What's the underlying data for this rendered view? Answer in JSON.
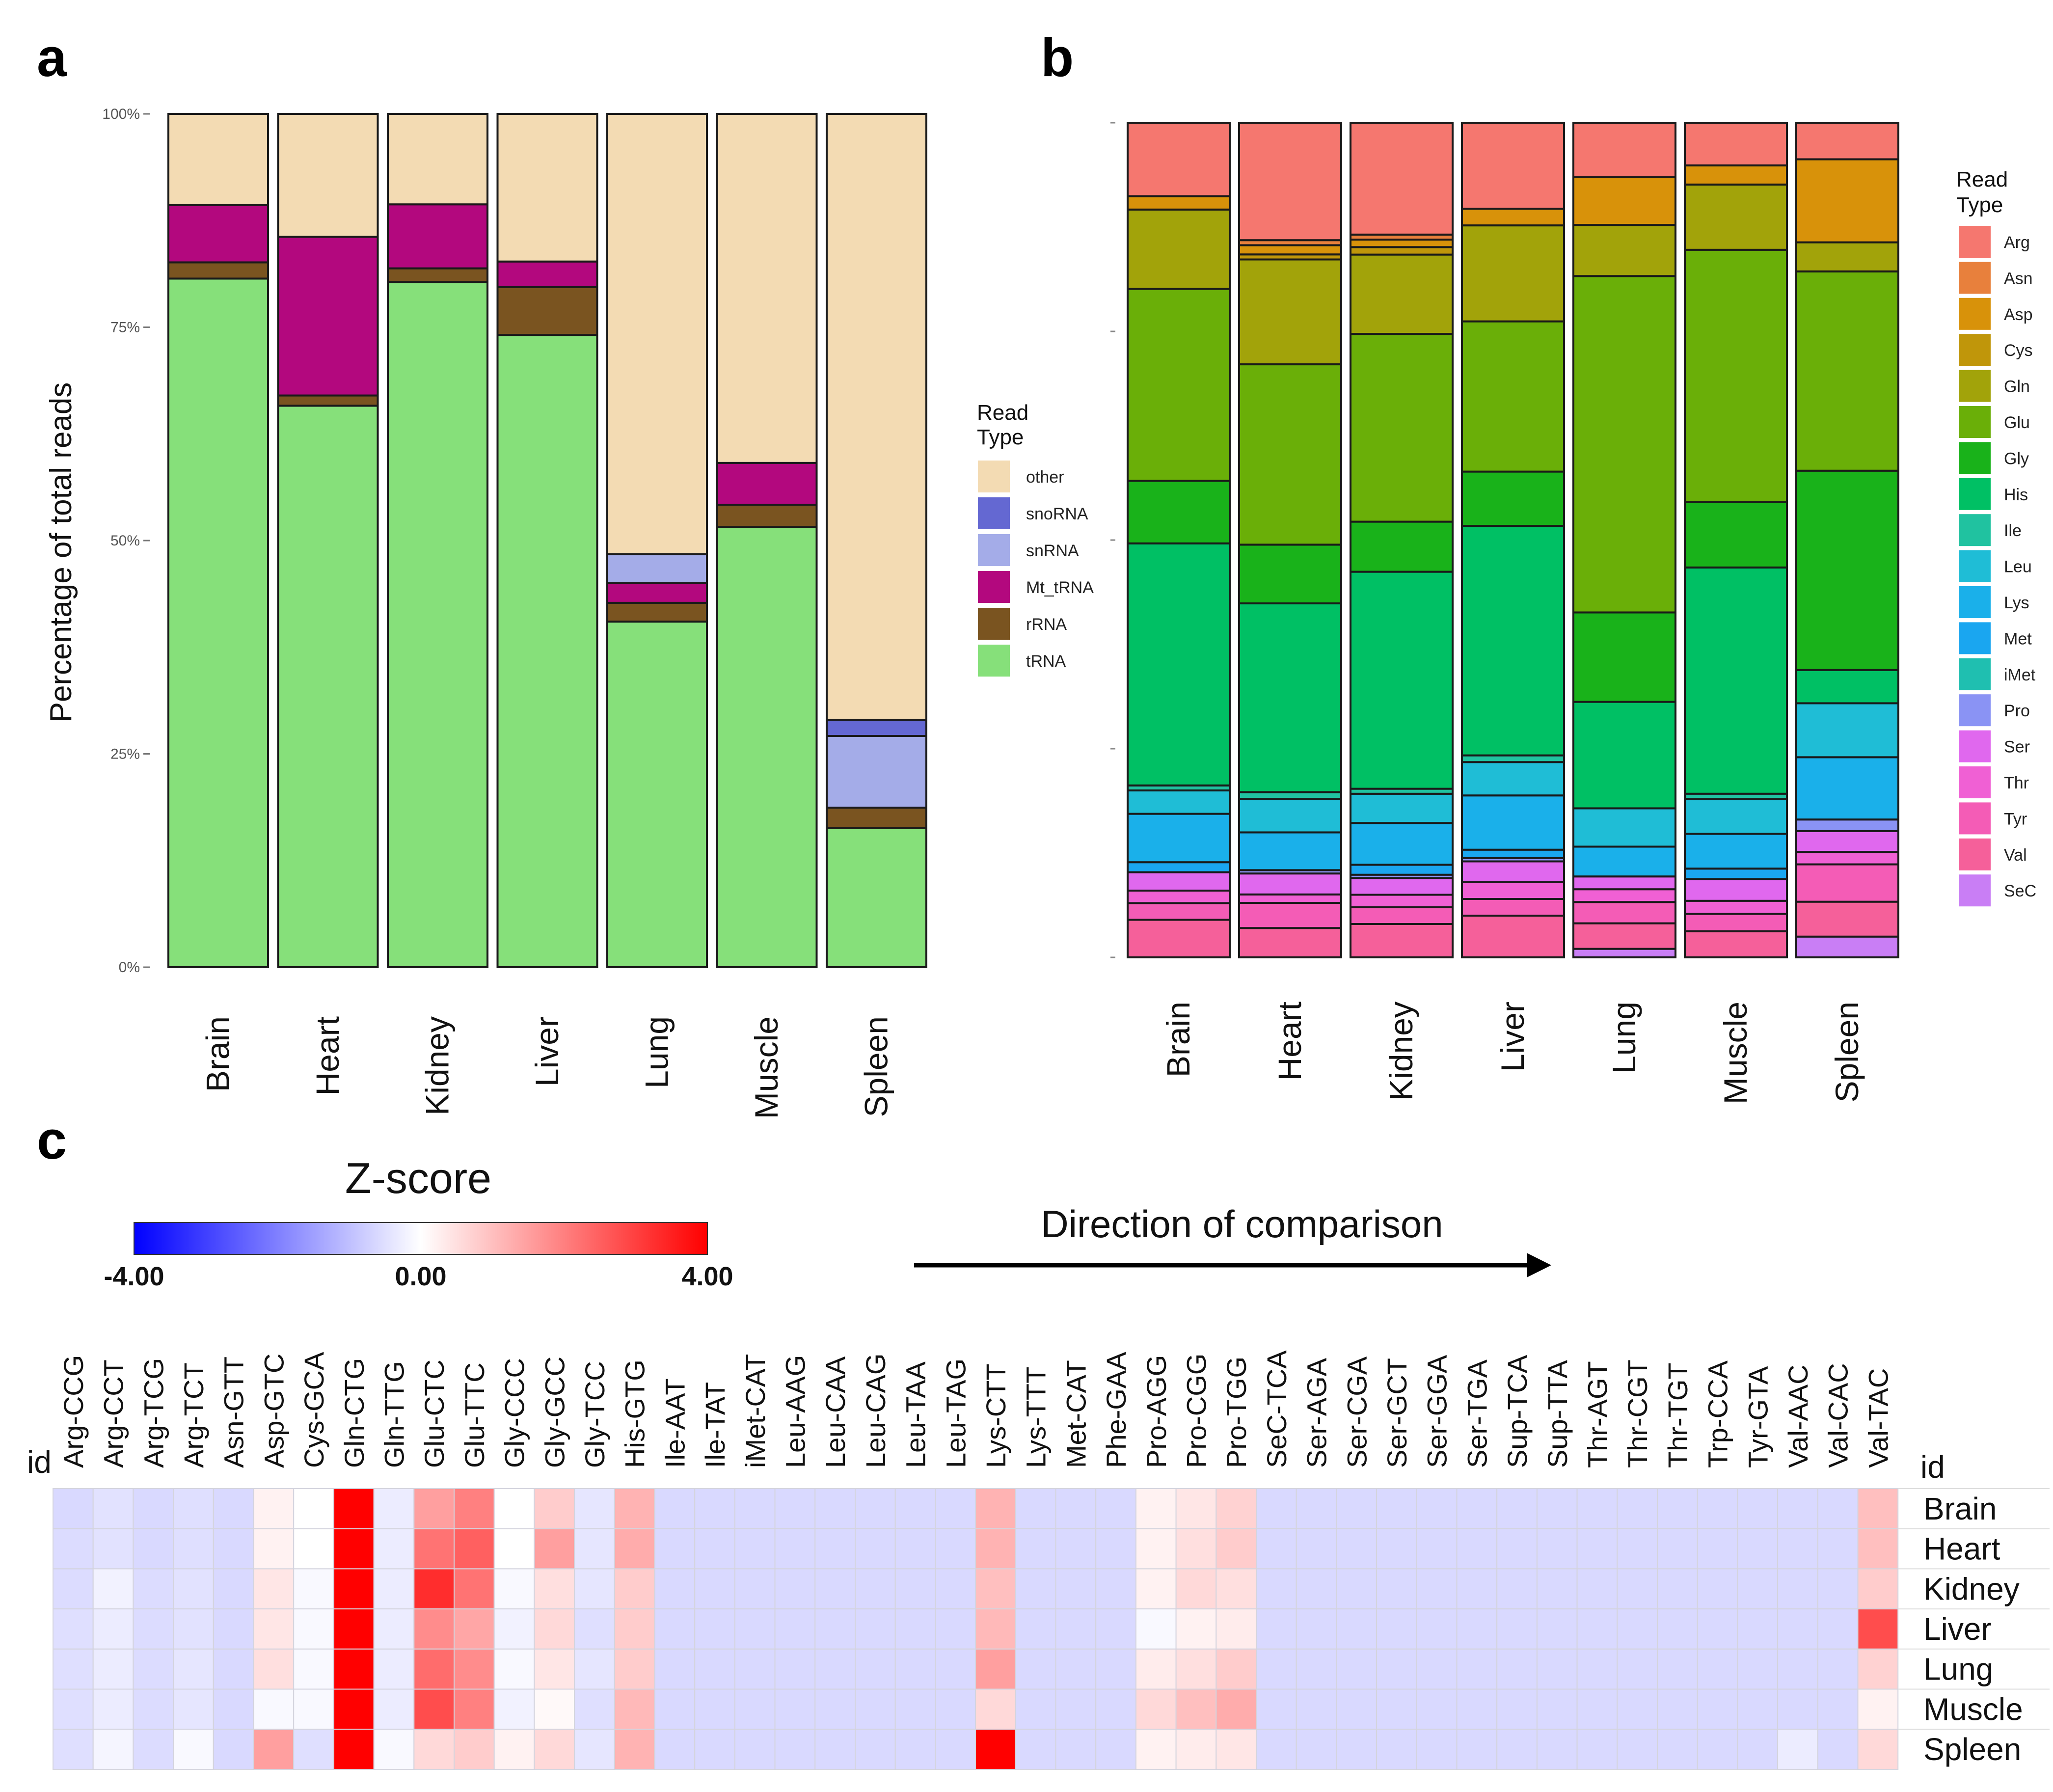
{
  "panel_labels": [
    "a",
    "b",
    "c"
  ],
  "chart_data": [
    {
      "type": "bar",
      "subtype": "stacked-100",
      "panel": "a",
      "categories": [
        "Brain",
        "Heart",
        "Kidney",
        "Liver",
        "Lung",
        "Muscle",
        "Spleen"
      ],
      "ylabel": "Percentage of total reads",
      "ylim": [
        0,
        100
      ],
      "yticks": [
        "0%",
        "25%",
        "50%",
        "75%",
        "100%"
      ],
      "legend": {
        "title": "Read Type",
        "position": "right"
      },
      "series": [
        {
          "name": "tRNA",
          "color": "#86e07a",
          "values": [
            80.7,
            65.8,
            80.3,
            74.1,
            40.5,
            51.6,
            16.3
          ]
        },
        {
          "name": "rRNA",
          "color": "#7a5420",
          "values": [
            1.9,
            1.2,
            1.6,
            5.6,
            2.2,
            2.6,
            2.4
          ]
        },
        {
          "name": "Mt_tRNA",
          "color": "#b3087e",
          "values": [
            6.7,
            18.6,
            7.5,
            3.0,
            2.3,
            4.9,
            0
          ]
        },
        {
          "name": "snRNA",
          "color": "#a4ace8",
          "values": [
            0,
            0,
            0,
            0,
            3.4,
            0,
            8.4
          ]
        },
        {
          "name": "snoRNA",
          "color": "#6468d2",
          "values": [
            0,
            0,
            0,
            0,
            0,
            0,
            1.9
          ]
        },
        {
          "name": "other",
          "color": "#f3dbb3",
          "values": [
            10.7,
            14.4,
            10.6,
            17.3,
            51.6,
            40.9,
            71.0
          ]
        }
      ]
    },
    {
      "type": "bar",
      "subtype": "stacked-100",
      "panel": "b",
      "categories": [
        "Brain",
        "Heart",
        "Kidney",
        "Liver",
        "Lung",
        "Muscle",
        "Spleen"
      ],
      "legend": {
        "title": "Read Type",
        "position": "right"
      },
      "series": [
        {
          "name": "SeC",
          "color": "#c97ef5",
          "values": [
            0,
            0,
            0,
            0,
            1,
            0,
            2.5
          ]
        },
        {
          "name": "Val",
          "color": "#f5609a",
          "values": [
            4.5,
            3.5,
            4,
            5,
            3,
            3,
            4.2
          ]
        },
        {
          "name": "Tyr",
          "color": "#f45cb6",
          "values": [
            2,
            3,
            2,
            2,
            2.5,
            2,
            4.5
          ]
        },
        {
          "name": "Thr",
          "color": "#f060d4",
          "values": [
            1.5,
            1,
            1.5,
            2,
            1.5,
            1.5,
            1.5
          ]
        },
        {
          "name": "Ser",
          "color": "#e068ee",
          "values": [
            2.2,
            2.5,
            2,
            2.5,
            1.5,
            2.5,
            2.5
          ]
        },
        {
          "name": "Pro",
          "color": "#8a93f4",
          "values": [
            0,
            0.4,
            0.4,
            0.4,
            0,
            0,
            1.4
          ]
        },
        {
          "name": "iMet",
          "color": "#1fbfb0",
          "values": [
            0,
            0,
            0,
            0,
            0,
            0,
            0
          ]
        },
        {
          "name": "Met",
          "color": "#1aa6f0",
          "values": [
            1.2,
            0,
            1.2,
            1,
            0,
            1.2,
            0
          ]
        },
        {
          "name": "Lys",
          "color": "#1ab0ea",
          "values": [
            5.8,
            4.5,
            5,
            6.5,
            3.5,
            4,
            7.5
          ]
        },
        {
          "name": "Leu",
          "color": "#1fbdd6",
          "values": [
            2.8,
            4,
            3.5,
            4,
            4.5,
            4,
            6.5
          ]
        },
        {
          "name": "Ile",
          "color": "#20c2a0",
          "values": [
            0.6,
            0.8,
            0.6,
            0.8,
            0,
            0.6,
            0
          ]
        },
        {
          "name": "His",
          "color": "#00c064",
          "values": [
            29,
            22.5,
            26,
            27.5,
            12.5,
            26,
            4
          ]
        },
        {
          "name": "Gly",
          "color": "#19b21a",
          "values": [
            7.5,
            7,
            6,
            6.5,
            10.5,
            7.5,
            24
          ]
        },
        {
          "name": "Glu",
          "color": "#6aaf08",
          "values": [
            23,
            21.5,
            22.5,
            18,
            39.5,
            29,
            24
          ]
        },
        {
          "name": "Gln",
          "color": "#a2a30a",
          "values": [
            9.5,
            12.5,
            9.5,
            11.5,
            6,
            7.5,
            3.5
          ]
        },
        {
          "name": "Cys",
          "color": "#c0960a",
          "values": [
            0,
            0.6,
            0.9,
            0,
            0,
            0,
            0
          ]
        },
        {
          "name": "Asp",
          "color": "#d8920a",
          "values": [
            1.6,
            1.1,
            0.9,
            2,
            5.6,
            2.2,
            10
          ]
        },
        {
          "name": "Asn",
          "color": "#e8803c",
          "values": [
            0,
            0.6,
            0.6,
            0,
            0,
            0,
            0
          ]
        },
        {
          "name": "Arg",
          "color": "#f5776f",
          "values": [
            8.8,
            14,
            13.4,
            10.3,
            6.4,
            4.9,
            4.4
          ]
        }
      ]
    },
    {
      "type": "heatmap",
      "panel": "c",
      "title": "Z-score",
      "colorbar": {
        "min": -4,
        "max": 4,
        "tick_labels": [
          "-4.00",
          "0.00",
          "4.00"
        ]
      },
      "annotation": "Direction of comparison",
      "id_label": "id",
      "columns": [
        "Arg-CCG",
        "Arg-CCT",
        "Arg-TCG",
        "Arg-TCT",
        "Asn-GTT",
        "Asp-GTC",
        "Cys-GCA",
        "Gln-CTG",
        "Gln-TTG",
        "Glu-CTC",
        "Glu-TTC",
        "Gly-CCC",
        "Gly-GCC",
        "Gly-TCC",
        "His-GTG",
        "Ile-AAT",
        "Ile-TAT",
        "iMet-CAT",
        "Leu-AAG",
        "Leu-CAA",
        "Leu-CAG",
        "Leu-TAA",
        "Leu-TAG",
        "Lys-CTT",
        "Lys-TTT",
        "Met-CAT",
        "Phe-GAA",
        "Pro-AGG",
        "Pro-CGG",
        "Pro-TGG",
        "SeC-TCA",
        "Ser-AGA",
        "Ser-CGA",
        "Ser-GCT",
        "Ser-GGA",
        "Ser-TGA",
        "Sup-TCA",
        "Sup-TTA",
        "Thr-AGT",
        "Thr-CGT",
        "Thr-TGT",
        "Trp-CCA",
        "Tyr-GTA",
        "Val-AAC",
        "Val-CAC",
        "Val-TAC"
      ],
      "rows": [
        "Brain",
        "Heart",
        "Kidney",
        "Liver",
        "Lung",
        "Muscle",
        "Spleen"
      ],
      "values": [
        [
          -0.6,
          -0.45,
          -0.6,
          -0.5,
          -0.6,
          0.2,
          0,
          4,
          -0.3,
          1.5,
          2.0,
          0,
          0.8,
          -0.4,
          1.2,
          -0.6,
          -0.6,
          -0.6,
          -0.6,
          -0.6,
          -0.6,
          -0.6,
          -0.6,
          1.2,
          -0.6,
          -0.6,
          -0.6,
          0.2,
          0.4,
          0.7,
          -0.6,
          -0.6,
          -0.6,
          -0.6,
          -0.6,
          -0.6,
          -0.6,
          -0.6,
          -0.6,
          -0.6,
          -0.6,
          -0.6,
          -0.6,
          -0.6,
          -0.6,
          1.0
        ],
        [
          -0.55,
          -0.45,
          -0.6,
          -0.5,
          -0.6,
          0.2,
          0,
          4,
          -0.3,
          2.2,
          2.5,
          0,
          1.5,
          -0.4,
          1.3,
          -0.6,
          -0.6,
          -0.6,
          -0.6,
          -0.6,
          -0.6,
          -0.6,
          -0.6,
          1.2,
          -0.6,
          -0.6,
          -0.6,
          0.2,
          0.5,
          0.8,
          -0.6,
          -0.6,
          -0.6,
          -0.6,
          -0.6,
          -0.6,
          -0.6,
          -0.6,
          -0.6,
          -0.6,
          -0.6,
          -0.6,
          -0.6,
          -0.6,
          -0.6,
          1.0
        ],
        [
          -0.55,
          -0.2,
          -0.55,
          -0.45,
          -0.6,
          0.4,
          -0.1,
          4,
          -0.3,
          3.3,
          2.2,
          -0.1,
          0.5,
          -0.4,
          0.8,
          -0.6,
          -0.6,
          -0.6,
          -0.6,
          -0.6,
          -0.6,
          -0.6,
          -0.6,
          1.0,
          -0.6,
          -0.6,
          -0.6,
          0.2,
          0.6,
          0.5,
          -0.6,
          -0.6,
          -0.6,
          -0.6,
          -0.6,
          -0.6,
          -0.6,
          -0.6,
          -0.6,
          -0.6,
          -0.6,
          -0.6,
          -0.6,
          -0.6,
          -0.6,
          0.8
        ],
        [
          -0.5,
          -0.3,
          -0.55,
          -0.45,
          -0.6,
          0.4,
          -0.1,
          4,
          -0.3,
          1.8,
          1.4,
          -0.2,
          0.6,
          -0.5,
          0.8,
          -0.6,
          -0.6,
          -0.6,
          -0.6,
          -0.6,
          -0.6,
          -0.6,
          -0.6,
          1.1,
          -0.6,
          -0.6,
          -0.6,
          -0.1,
          0.2,
          0.3,
          -0.6,
          -0.6,
          -0.6,
          -0.6,
          -0.6,
          -0.6,
          -0.6,
          -0.6,
          -0.6,
          -0.6,
          -0.6,
          -0.6,
          -0.6,
          -0.6,
          -0.6,
          2.8
        ],
        [
          -0.5,
          -0.3,
          -0.55,
          -0.4,
          -0.6,
          0.5,
          -0.1,
          4,
          -0.3,
          2.3,
          1.8,
          -0.1,
          0.4,
          -0.4,
          0.8,
          -0.6,
          -0.6,
          -0.6,
          -0.6,
          -0.6,
          -0.6,
          -0.6,
          -0.6,
          1.5,
          -0.6,
          -0.6,
          -0.6,
          0.3,
          0.5,
          0.8,
          -0.6,
          -0.6,
          -0.6,
          -0.6,
          -0.6,
          -0.6,
          -0.6,
          -0.6,
          -0.6,
          -0.6,
          -0.6,
          -0.6,
          -0.6,
          -0.6,
          -0.6,
          0.7
        ],
        [
          -0.5,
          -0.3,
          -0.55,
          -0.4,
          -0.6,
          -0.1,
          -0.1,
          4,
          -0.3,
          2.8,
          2.0,
          -0.2,
          0.1,
          -0.5,
          1.1,
          -0.6,
          -0.6,
          -0.6,
          -0.6,
          -0.6,
          -0.6,
          -0.6,
          -0.6,
          0.6,
          -0.6,
          -0.6,
          -0.6,
          0.6,
          1.0,
          1.3,
          -0.6,
          -0.6,
          -0.6,
          -0.6,
          -0.6,
          -0.6,
          -0.6,
          -0.6,
          -0.6,
          -0.6,
          -0.6,
          -0.6,
          -0.6,
          -0.6,
          -0.6,
          0.2
        ],
        [
          -0.5,
          -0.15,
          -0.55,
          -0.1,
          -0.6,
          1.5,
          -0.5,
          4,
          -0.1,
          0.6,
          0.8,
          0.2,
          0.6,
          -0.4,
          1.2,
          -0.6,
          -0.6,
          -0.6,
          -0.6,
          -0.6,
          -0.6,
          -0.6,
          -0.6,
          4,
          -0.6,
          -0.6,
          -0.6,
          0.2,
          0.3,
          0.4,
          -0.6,
          -0.6,
          -0.6,
          -0.6,
          -0.6,
          -0.6,
          -0.6,
          -0.6,
          -0.6,
          -0.6,
          -0.6,
          -0.6,
          -0.6,
          -0.3,
          -0.6,
          0.6
        ]
      ]
    }
  ]
}
